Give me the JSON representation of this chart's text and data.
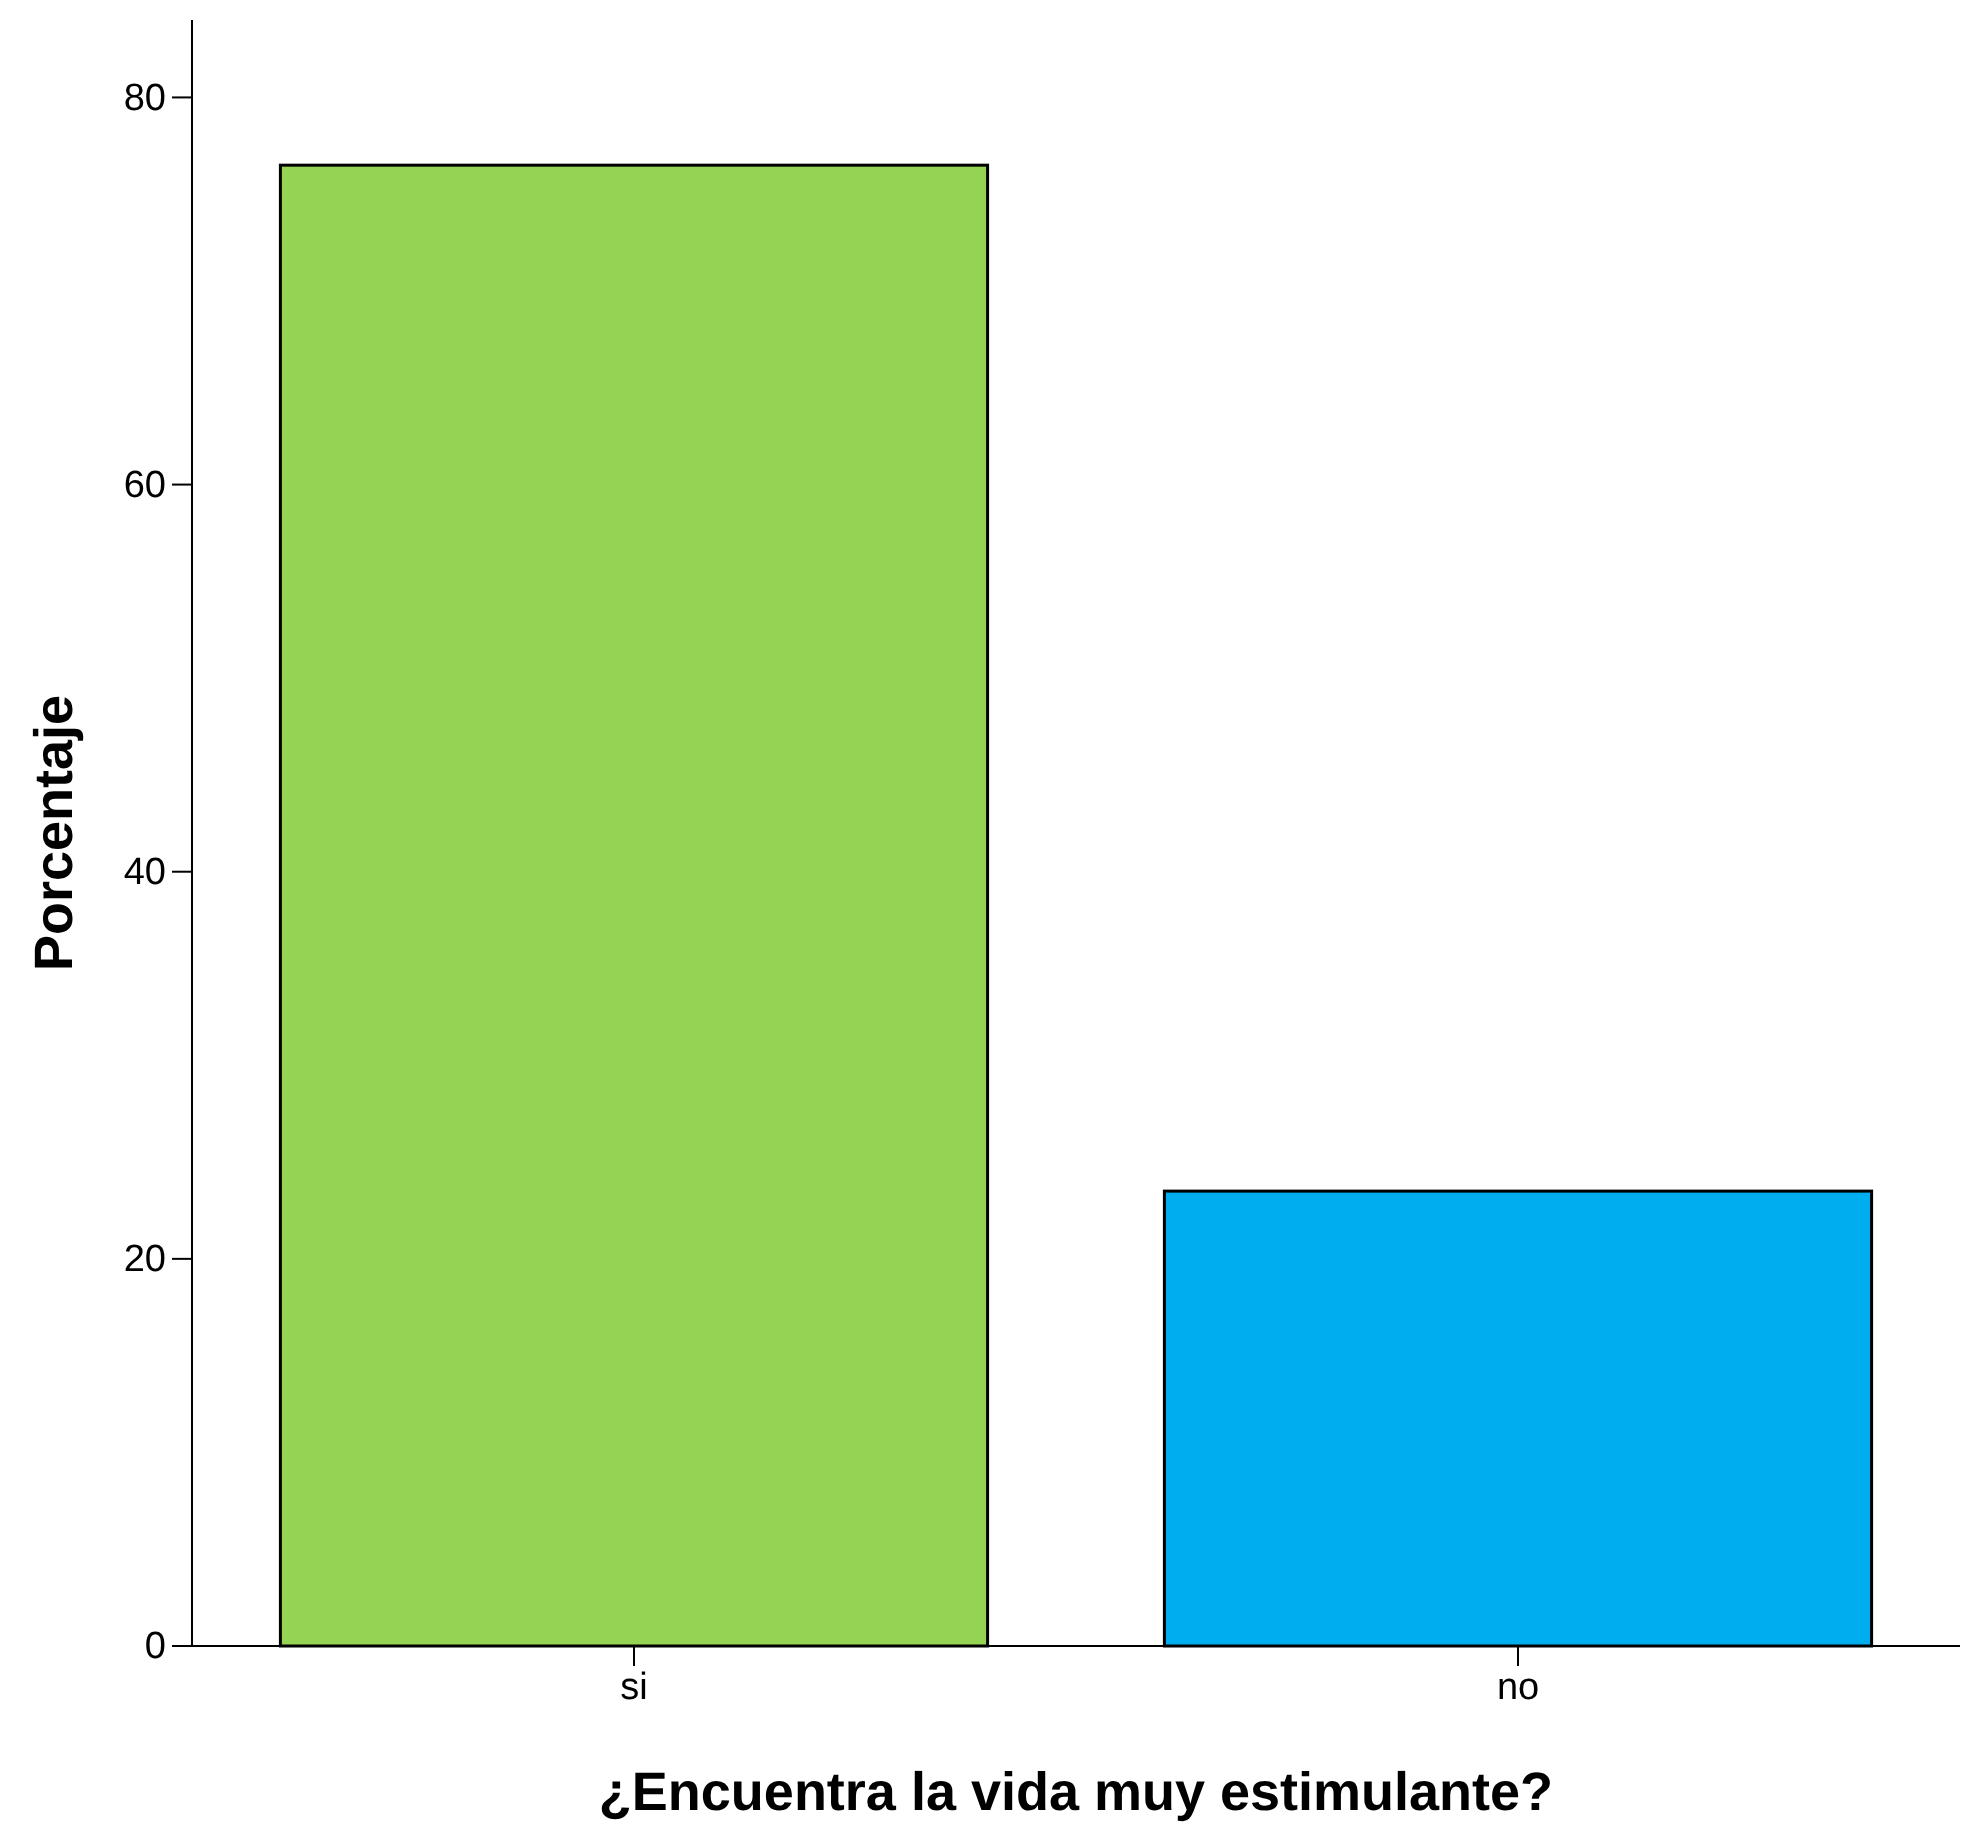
{
  "chart_data": {
    "type": "bar",
    "xlabel": "¿Encuentra la vida muy estimulante?",
    "ylabel": "Porcentaje",
    "categories": [
      "si",
      "no"
    ],
    "values": [
      76.5,
      23.5
    ],
    "colors": [
      "#95d354",
      "#00aeef"
    ],
    "ylim": [
      0,
      84
    ],
    "yticks": [
      0,
      20,
      40,
      60,
      80
    ],
    "grid": false
  }
}
